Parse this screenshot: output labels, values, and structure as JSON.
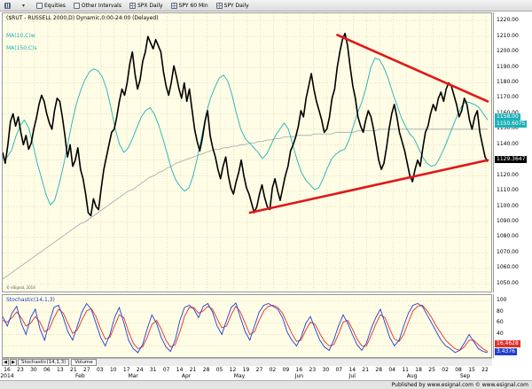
{
  "toolbar": {
    "items": [
      {
        "label": "",
        "icon": "bar-chart-icon"
      },
      {
        "label": "",
        "icon": "chevron-down-icon"
      },
      {
        "label": "Equities",
        "icon": "chart-icon"
      },
      {
        "label": "Other Intervals",
        "icon": "chart-icon"
      },
      {
        "label": "SPX Daily",
        "icon": "chart-icon"
      },
      {
        "label": "SPY 60 Min",
        "icon": "chart-icon"
      },
      {
        "label": "SPY Daily",
        "icon": "chart-icon"
      }
    ]
  },
  "chart": {
    "title": "($RUT - RUSSELL 2000,D) Dynamic,0:00-24:00 (Delayed)",
    "ma_short_label": "MA(10,C)w",
    "ma_long_label": "MA(150,C)s",
    "esignal_small": "© eSignal, 2014",
    "price_ticks": [
      "1220.00",
      "1210.00",
      "1200.00",
      "1190.00",
      "1180.00",
      "1170.00",
      "1160.00",
      "1150.00",
      "1140.00",
      "1130.00",
      "1120.00",
      "1110.00",
      "1100.00",
      "1090.00",
      "1080.00",
      "1070.00",
      "1060.00",
      "1050.00"
    ],
    "tags": {
      "ma_value": "1158.00",
      "ma_value2": "1150.6075",
      "last_price": "1129.3647"
    }
  },
  "oscillator": {
    "title": "Stochastic(14,1,3)",
    "ticks": [
      "100",
      "80",
      "60",
      "40",
      "20"
    ],
    "tags": {
      "k": "16.4628",
      "d": "3.4376"
    }
  },
  "tabs": {
    "items": [
      "Stochastic(14,1,3)",
      "Volume"
    ]
  },
  "time_axis": {
    "days": [
      "16",
      "23",
      "30",
      "06",
      "13",
      "21",
      "27",
      "03",
      "10",
      "17",
      "24",
      "31",
      "07",
      "14",
      "21",
      "28",
      "05",
      "12",
      "19",
      "27",
      "02",
      "09",
      "16",
      "23",
      "30",
      "07",
      "14",
      "21",
      "28",
      "04",
      "11",
      "18",
      "25",
      "02",
      "08",
      "15",
      "22"
    ],
    "months": [
      "2014",
      "Feb",
      "Mar",
      "Apr",
      "May",
      "Jun",
      "Jul",
      "Aug",
      "Sep"
    ]
  },
  "footer": {
    "text": "Published by www.esignal.com   © www.esignal.com"
  },
  "colors": {
    "pane_bg": "#fffde6",
    "price_line": "#000000",
    "ma_short": "#1fb1b8",
    "ma_long": "#9aa8ad",
    "trendline": "#e01818",
    "stoch_k": "#1e3fcf",
    "stoch_d": "#e0302a",
    "tag_ma": "#1fb1b8",
    "tag_last": "#000000",
    "tag_k": "#e0302a",
    "tag_d": "#1e3fcf"
  },
  "chart_data": {
    "type": "line",
    "y_range": [
      1045,
      1225
    ],
    "series": [
      {
        "name": "MA(10,C)w",
        "values": [
          1131,
          1132,
          1136,
          1145,
          1152,
          1156,
          1151,
          1140,
          1128,
          1118,
          1108,
          1101,
          1104,
          1114,
          1126,
          1140,
          1154,
          1166,
          1175,
          1182,
          1187,
          1189,
          1188,
          1184,
          1176,
          1164,
          1150,
          1140,
          1135,
          1138,
          1144,
          1151,
          1158,
          1162,
          1164,
          1160,
          1153,
          1144,
          1134,
          1124,
          1117,
          1113,
          1110,
          1112,
          1120,
          1132,
          1146,
          1160,
          1170,
          1177,
          1183,
          1185,
          1181,
          1172,
          1160,
          1150,
          1144,
          1141,
          1138,
          1135,
          1131,
          1134,
          1140,
          1146,
          1150,
          1154,
          1150,
          1140,
          1130,
          1122,
          1117,
          1114,
          1111,
          1112,
          1118,
          1125,
          1131,
          1134,
          1136,
          1137,
          1143,
          1152,
          1161,
          1168,
          1178,
          1190,
          1196,
          1195,
          1190,
          1183,
          1174,
          1166,
          1158,
          1152,
          1147,
          1144,
          1138,
          1132,
          1128,
          1126,
          1127,
          1132,
          1138,
          1145,
          1152,
          1159,
          1165,
          1168,
          1167,
          1166,
          1164,
          1160,
          1156
        ]
      },
      {
        "name": "MA(150,C)s",
        "values": [
          1053,
          1055,
          1057,
          1059,
          1061,
          1063,
          1065,
          1067,
          1069,
          1071,
          1073,
          1075,
          1077,
          1079,
          1081,
          1083,
          1085,
          1087,
          1089,
          1090,
          1092,
          1094,
          1096,
          1098,
          1100,
          1102,
          1104,
          1106,
          1108,
          1110,
          1111,
          1113,
          1115,
          1117,
          1119,
          1120,
          1122,
          1123,
          1125,
          1126,
          1128,
          1129,
          1130,
          1131,
          1132,
          1133,
          1134,
          1135,
          1136,
          1137,
          1137,
          1138,
          1138,
          1139,
          1139,
          1140,
          1140,
          1141,
          1141,
          1142,
          1142,
          1143,
          1143,
          1144,
          1144,
          1145,
          1145,
          1145,
          1146,
          1146,
          1146,
          1146,
          1147,
          1147,
          1147,
          1147,
          1147,
          1148,
          1148,
          1148,
          1148,
          1148,
          1149,
          1149,
          1149,
          1149,
          1149,
          1150,
          1150,
          1150,
          1150,
          1150,
          1150,
          1150,
          1150,
          1150,
          1150,
          1150,
          1150,
          1150,
          1150,
          1150,
          1150,
          1150,
          1150,
          1150,
          1150,
          1150,
          1150,
          1150,
          1150,
          1150,
          1150
        ]
      },
      {
        "name": "RUSSELL 2000",
        "values": [
          1135,
          1128,
          1140,
          1155,
          1160,
          1152,
          1158,
          1148,
          1140,
          1146,
          1137,
          1141,
          1150,
          1157,
          1166,
          1172,
          1168,
          1160,
          1154,
          1150,
          1162,
          1170,
          1168,
          1158,
          1146,
          1132,
          1140,
          1126,
          1130,
          1138,
          1124,
          1118,
          1108,
          1096,
          1094,
          1105,
          1100,
          1098,
          1112,
          1124,
          1132,
          1140,
          1148,
          1150,
          1158,
          1168,
          1176,
          1172,
          1180,
          1192,
          1200,
          1186,
          1176,
          1182,
          1194,
          1200,
          1210,
          1206,
          1202,
          1208,
          1204,
          1200,
          1187,
          1178,
          1172,
          1180,
          1191,
          1184,
          1176,
          1170,
          1180,
          1168,
          1176,
          1163,
          1150,
          1142,
          1136,
          1144,
          1155,
          1162,
          1146,
          1138,
          1132,
          1124,
          1118,
          1126,
          1132,
          1120,
          1112,
          1108,
          1116,
          1122,
          1130,
          1120,
          1112,
          1108,
          1102,
          1096,
          1100,
          1108,
          1114,
          1106,
          1100,
          1098,
          1112,
          1118,
          1110,
          1104,
          1112,
          1120,
          1126,
          1136,
          1140,
          1145,
          1152,
          1162,
          1158,
          1170,
          1178,
          1186,
          1176,
          1168,
          1162,
          1156,
          1148,
          1150,
          1158,
          1170,
          1176,
          1190,
          1200,
          1208,
          1212,
          1204,
          1190,
          1178,
          1170,
          1158,
          1152,
          1148,
          1156,
          1162,
          1158,
          1150,
          1140,
          1130,
          1124,
          1128,
          1138,
          1150,
          1160,
          1166,
          1158,
          1148,
          1142,
          1136,
          1128,
          1120,
          1116,
          1124,
          1130,
          1126,
          1138,
          1148,
          1152,
          1160,
          1166,
          1162,
          1170,
          1174,
          1168,
          1176,
          1180,
          1178,
          1172,
          1166,
          1158,
          1162,
          1170,
          1166,
          1156,
          1150,
          1158,
          1162,
          1148,
          1140,
          1132,
          1129
        ]
      }
    ],
    "trendlines": [
      {
        "name": "upper",
        "from": {
          "index": 0.69,
          "value": 1211
        },
        "to": {
          "index": 1.0,
          "value": 1168
        }
      },
      {
        "name": "lower",
        "from": {
          "index": 0.51,
          "value": 1096
        },
        "to": {
          "index": 1.0,
          "value": 1130
        }
      }
    ]
  },
  "stochastic_data": {
    "y_range": [
      0,
      110
    ],
    "k": [
      72,
      55,
      78,
      90,
      60,
      40,
      70,
      85,
      50,
      30,
      62,
      88,
      92,
      70,
      45,
      30,
      55,
      80,
      95,
      85,
      60,
      35,
      20,
      40,
      70,
      88,
      60,
      30,
      15,
      8,
      22,
      50,
      75,
      60,
      35,
      18,
      10,
      30,
      65,
      88,
      92,
      85,
      70,
      90,
      95,
      80,
      55,
      40,
      65,
      88,
      96,
      70,
      45,
      30,
      55,
      80,
      92,
      95,
      90,
      85,
      70,
      45,
      30,
      20,
      35,
      60,
      72,
      50,
      30,
      18,
      12,
      30,
      55,
      75,
      60,
      40,
      22,
      12,
      25,
      50,
      70,
      85,
      60,
      35,
      20,
      30,
      55,
      78,
      92,
      95,
      90,
      75,
      60,
      45,
      30,
      20,
      15,
      8,
      12,
      25,
      40,
      28,
      15,
      10,
      8
    ],
    "d": [
      65,
      62,
      70,
      80,
      70,
      55,
      60,
      72,
      62,
      45,
      50,
      70,
      85,
      78,
      60,
      42,
      48,
      66,
      82,
      86,
      72,
      50,
      32,
      35,
      55,
      75,
      70,
      45,
      25,
      15,
      18,
      35,
      58,
      65,
      50,
      30,
      18,
      22,
      45,
      72,
      88,
      88,
      78,
      82,
      90,
      85,
      68,
      52,
      55,
      75,
      90,
      80,
      60,
      40,
      45,
      65,
      82,
      90,
      92,
      88,
      78,
      60,
      42,
      28,
      30,
      48,
      62,
      58,
      42,
      28,
      20,
      22,
      40,
      62,
      65,
      50,
      32,
      20,
      20,
      38,
      58,
      75,
      70,
      50,
      32,
      28,
      40,
      62,
      82,
      90,
      92,
      82,
      70,
      55,
      42,
      30,
      22,
      15,
      12,
      18,
      30,
      30,
      22,
      15,
      10
    ]
  }
}
